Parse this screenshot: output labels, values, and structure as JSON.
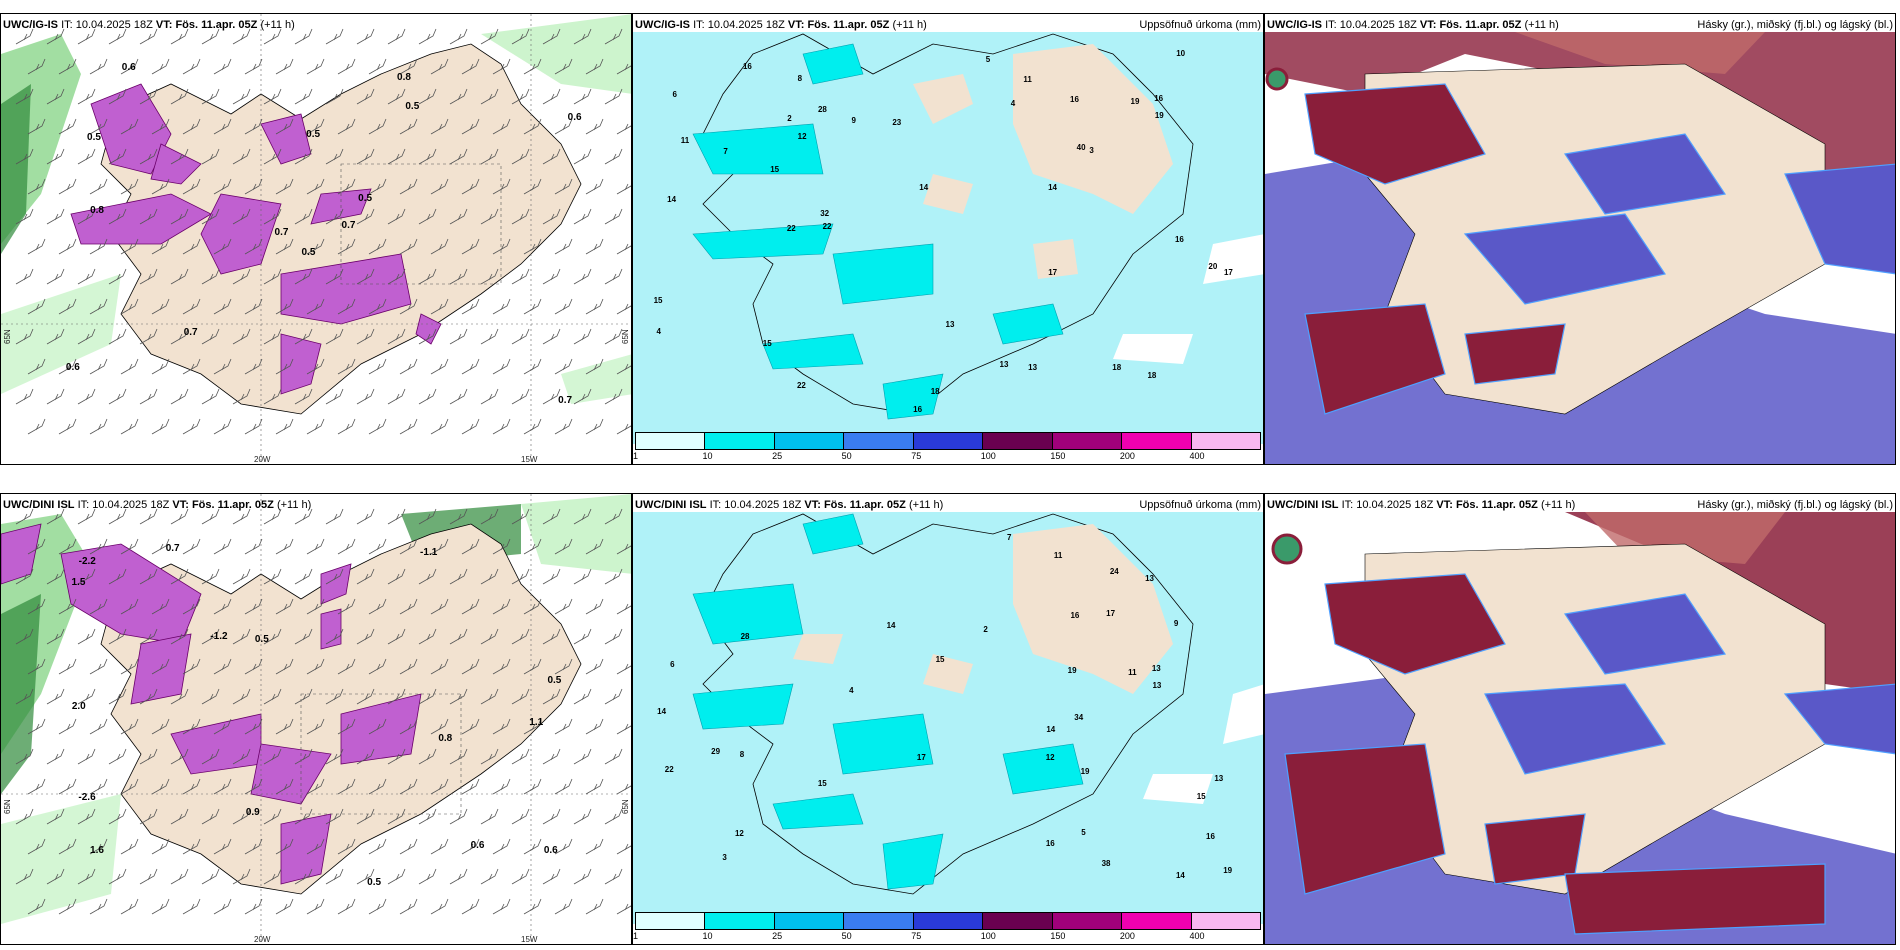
{
  "rows": [
    {
      "model": "UWC/IG-IS",
      "it_prefix": "IT: ",
      "it_value": "10.04.2025 18Z",
      "vt_prefix": "VT:",
      "vt_value": "Fös. 11.apr. 05Z",
      "lead": "(+11 h)",
      "left_map": {
        "lon_labels": [
          "20W",
          "15W"
        ],
        "lat_labels": [
          "65N",
          "65N"
        ],
        "values": [
          "0.5",
          "0.5",
          "0.7",
          "0.6",
          "0.5",
          "0.7",
          "0.8",
          "0.5",
          "0.5",
          "0.7",
          "0.6",
          "0.7",
          "0.8",
          "0.6"
        ]
      },
      "mid_map": {
        "title": "Uppsöfnuð úrkoma (mm)",
        "values": [
          "11",
          "12",
          "14",
          "18",
          "19",
          "16",
          "17",
          "22",
          "16",
          "17",
          "20",
          "28",
          "40",
          "15",
          "14",
          "22",
          "32",
          "23",
          "18",
          "13",
          "18",
          "16",
          "14",
          "13",
          "16",
          "15",
          "19",
          "11",
          "16",
          "22",
          "15",
          "13",
          "10",
          "7",
          "6",
          "8",
          "9",
          "4",
          "5",
          "4",
          "3",
          "2"
        ]
      },
      "right_map": {
        "title": "Hásky (gr.), miðský (fj.bl.) og lágský (bl.)"
      }
    },
    {
      "model": "UWC/DINI ISL",
      "it_prefix": "IT: ",
      "it_value": "10.04.2025 18Z",
      "vt_prefix": "VT:",
      "vt_value": "Fös. 11.apr. 05Z",
      "lead": "(+11 h)",
      "left_map": {
        "lon_labels": [
          "20W",
          "15W"
        ],
        "lat_labels": [
          "65N",
          "65N"
        ],
        "values": [
          "0.8",
          "1.1",
          "1.6",
          "0.7",
          "0.5",
          "0.6",
          "-2.6",
          "-1.1",
          "-1.2",
          "0.5",
          "1.5",
          "2.0",
          "-2.2",
          "0.6",
          "0.9",
          "0.5"
        ]
      },
      "mid_map": {
        "title": "Uppsöfnuð úrkoma (mm)",
        "values": [
          "12",
          "13",
          "11",
          "15",
          "16",
          "17",
          "13",
          "15",
          "16",
          "38",
          "34",
          "14",
          "22",
          "19",
          "15",
          "14",
          "13",
          "29",
          "24",
          "14",
          "17",
          "14",
          "19",
          "11",
          "13",
          "12",
          "28",
          "16",
          "19",
          "8",
          "9",
          "7",
          "6",
          "5",
          "4",
          "3",
          "2"
        ]
      },
      "right_map": {
        "title": "Hásky (gr.), miðský (fj.bl.) og lágský (bl.)"
      }
    }
  ],
  "colorbar": {
    "labels": [
      "1",
      "10",
      "25",
      "50",
      "75",
      "100",
      "150",
      "200",
      "400"
    ],
    "colors": [
      "#e0ffff",
      "#00eeee",
      "#00c0ee",
      "#3a7cf0",
      "#2a3ad8",
      "#6a0050",
      "#a0007a",
      "#f000b0",
      "#f8b8f0"
    ]
  },
  "colors": {
    "land": "#f2e2d0",
    "precip_light": "#a8f0ff",
    "high_cloud": "#8a1e3a",
    "mid_cloud": "#5a58c8",
    "low_cloud_edge": "#4fa0ff",
    "snow": "#c060d0",
    "green": "#60c060"
  }
}
